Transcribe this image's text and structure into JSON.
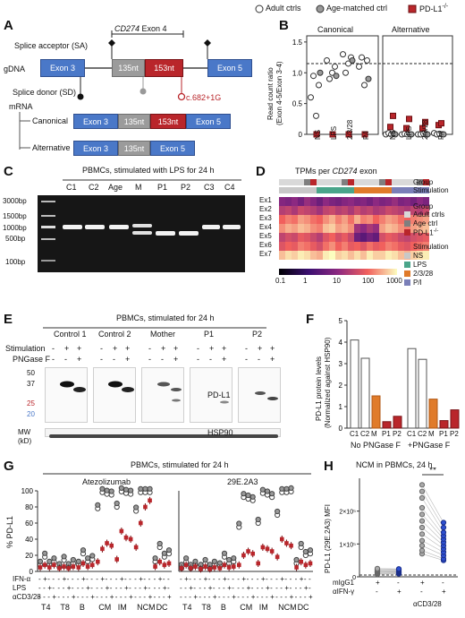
{
  "legend": {
    "adult": "Adult ctrls",
    "age": "Age-matched ctrl",
    "pd": "PD-L1",
    "pd_sup": "-/-"
  },
  "panelA": {
    "letter": "A",
    "gene_label": "CD274",
    "gene_exon": "Exon 4",
    "splice_acceptor": "Splice acceptor (SA)",
    "splice_donor": "Splice donor (SD)",
    "gdna": "gDNA",
    "mrna": "mRNA",
    "exon3": "Exon 3",
    "nt135": "135nt",
    "nt153": "153nt",
    "exon5": "Exon 5",
    "mutation": "c.682+1G",
    "canonical": "Canonical",
    "alternative": "Alternative"
  },
  "panelB": {
    "letter": "B",
    "col1": "Canonical",
    "col2": "Alternative",
    "ylabel": "Read count ratio",
    "ylabel2": "(Exon 4-5/Exon 3-4)",
    "yticks": [
      "0",
      "0.5",
      "1.0",
      "1.5"
    ],
    "xcats": [
      "NS",
      "LPS",
      "2/3/28",
      "P/I"
    ]
  },
  "panelC": {
    "letter": "C",
    "title": "PBMCs, stimulated with LPS for 24 h",
    "lanes": [
      "C1",
      "C2",
      "Age",
      "M",
      "P1",
      "P2",
      "C3",
      "C4"
    ],
    "ladder": [
      "3000bp",
      "1500bp",
      "1000bp",
      "500bp",
      "100bp"
    ]
  },
  "panelD": {
    "letter": "D",
    "title": "TPMs per",
    "title_gene": "CD274",
    "title_end": "exon",
    "row_group": "Group",
    "row_stim": "Stimulation",
    "exons": [
      "Ex1",
      "Ex2",
      "Ex3",
      "Ex4",
      "Ex5",
      "Ex6",
      "Ex7"
    ],
    "scale": [
      "0.1",
      "1",
      "10",
      "100",
      "1000"
    ],
    "legend_group_title": "Group",
    "legend_group": [
      "Adult ctrls",
      "Age ctrl",
      "PD-L1"
    ],
    "legend_stim_title": "Stimulation",
    "legend_stim": [
      "NS",
      "LPS",
      "2/3/28",
      "P/I"
    ],
    "colors": {
      "adult": "#d9d9d9",
      "age": "#7f7f7f",
      "pd": "#b9262b",
      "ns": "#c8c8c8",
      "lps": "#4aa58a",
      "s2328": "#e07b2a",
      "pi": "#7a7fb8"
    }
  },
  "panelE": {
    "letter": "E",
    "title": "PBMCs, stimulated for 24 h",
    "groups": [
      "Control 1",
      "Control 2",
      "Mother",
      "P1",
      "P2"
    ],
    "stim_label": "Stimulation",
    "png_label": "PNGase F",
    "signs_stim": [
      "-",
      "+",
      "+",
      "-",
      "+",
      "+",
      "-",
      "+",
      "+",
      "-",
      "+",
      "+",
      "-",
      "+",
      "+"
    ],
    "signs_png": [
      "-",
      "-",
      "+",
      "-",
      "-",
      "+",
      "-",
      "-",
      "+",
      "-",
      "-",
      "+",
      "-",
      "-",
      "+"
    ],
    "mw": [
      "50",
      "37",
      "25",
      "20"
    ],
    "mw_label": "MW",
    "kd": "(kD)",
    "pdl1": "PD-L1",
    "hsp90": "HSP90"
  },
  "panelF": {
    "letter": "F",
    "ylabel": "PD-L1 protein levels",
    "ylabel2": "(Normalized against HSP90)",
    "yticks": [
      "0",
      "1",
      "2",
      "3",
      "4",
      "5"
    ],
    "cats": [
      "C1",
      "C2",
      "M",
      "P1",
      "P2",
      "C1",
      "C2",
      "M",
      "P1",
      "P2"
    ],
    "groups": [
      "No PNGase F",
      "+PNGase F"
    ]
  },
  "panelG": {
    "letter": "G",
    "title": "PBMCs, stimulated for 24 h",
    "sub1": "Atezolizumab",
    "sub2": "29E.2A3",
    "ylabel": "% PD-L1",
    "yticks": [
      "0",
      "20",
      "40",
      "60",
      "80",
      "100"
    ],
    "row_labels": [
      "IFN-α",
      "LPS",
      "αCD3/28"
    ],
    "cells": [
      "T4",
      "T8",
      "B",
      "CM",
      "IM",
      "NCM",
      "DC"
    ]
  },
  "panelH": {
    "letter": "H",
    "title": "NCM in PBMCs, 24 h",
    "ylabel": "PD-L1 (29E.2A3) MFI",
    "yticks": [
      "0",
      "1×10⁵",
      "2×10⁵"
    ],
    "sig": "**",
    "row_labels": [
      "mIgG1",
      "αIFN-γ"
    ],
    "cd328": "αCD3/28"
  },
  "chart_data": [
    {
      "type": "scatter",
      "panel": "B",
      "categories": [
        "NS",
        "LPS",
        "2/3/28",
        "P/I"
      ],
      "series": [
        {
          "name": "Adult ctrls",
          "group": "Canonical",
          "values": [
            [
              0.6,
              0.95,
              0.3,
              0.8
            ],
            [
              1.2,
              0.9,
              1.0,
              1.1
            ],
            [
              1.3,
              1.0,
              1.15,
              1.25
            ],
            [
              1.1,
              1.25,
              0.8,
              1.2
            ]
          ]
        },
        {
          "name": "Age-matched ctrl",
          "group": "Canonical",
          "values": [
            1.0,
            0.95,
            1.2,
            0.9
          ]
        },
        {
          "name": "PD-L1",
          "group": "Canonical",
          "values": [
            0,
            0,
            0,
            0
          ]
        },
        {
          "name": "Adult ctrls",
          "group": "Alternative",
          "values": [
            [
              0,
              0.02,
              0,
              0.01
            ],
            [
              0,
              0.01,
              0,
              0
            ],
            [
              0,
              0,
              0.01,
              0
            ],
            [
              0.02,
              0,
              0.01,
              0
            ]
          ]
        },
        {
          "name": "Age-matched ctrl",
          "group": "Alternative",
          "values": [
            0,
            0,
            0,
            0
          ]
        },
        {
          "name": "PD-L1",
          "group": "Alternative",
          "values": [
            [
              0.12,
              0.3
            ],
            [
              0.1,
              0.25
            ],
            [
              0.1,
              0.2
            ],
            [
              0.15,
              0.18
            ]
          ]
        }
      ],
      "ylim": [
        0,
        1.6
      ]
    },
    {
      "type": "heatmap",
      "panel": "D",
      "rows": [
        "Ex1",
        "Ex2",
        "Ex3",
        "Ex4",
        "Ex5",
        "Ex6",
        "Ex7"
      ],
      "n_cols": 24,
      "log10_values": [
        [
          0.9,
          0.8,
          1.0,
          0.7,
          1.1,
          0.9,
          0.6,
          1.0,
          0.8,
          0.7,
          0.9,
          1.0,
          0.8,
          0.9,
          0.7,
          1.0,
          0.8,
          0.9,
          1.1,
          0.8,
          0.9,
          0.7,
          1.0,
          0.8
        ],
        [
          1.4,
          1.5,
          1.3,
          1.6,
          1.5,
          1.4,
          1.2,
          1.5,
          1.6,
          1.4,
          1.5,
          1.3,
          1.6,
          1.4,
          1.5,
          1.3,
          1.4,
          1.6,
          1.5,
          1.4,
          1.3,
          1.5,
          1.4,
          1.6
        ],
        [
          2.0,
          2.2,
          2.1,
          2.4,
          2.3,
          2.1,
          2.0,
          2.3,
          2.5,
          2.2,
          2.4,
          2.1,
          2.5,
          2.2,
          2.3,
          2.0,
          2.2,
          2.4,
          2.3,
          2.1,
          2.0,
          2.2,
          2.3,
          2.4
        ],
        [
          2.3,
          2.5,
          2.4,
          2.6,
          2.5,
          2.3,
          2.2,
          2.6,
          2.7,
          2.4,
          2.5,
          2.3,
          1.2,
          1.0,
          1.3,
          1.1,
          2.4,
          2.6,
          2.5,
          2.3,
          2.2,
          2.4,
          2.5,
          2.6
        ],
        [
          1.5,
          1.7,
          1.6,
          1.9,
          1.8,
          1.6,
          1.4,
          1.8,
          2.0,
          1.7,
          1.9,
          1.6,
          0.6,
          0.4,
          0.7,
          0.5,
          1.7,
          1.9,
          1.8,
          1.6,
          1.5,
          1.7,
          1.8,
          1.9
        ],
        [
          1.8,
          2.0,
          1.9,
          2.2,
          2.1,
          1.9,
          1.7,
          2.1,
          2.3,
          2.0,
          2.2,
          1.9,
          2.0,
          1.8,
          2.1,
          1.9,
          2.0,
          2.2,
          2.1,
          1.9,
          1.8,
          2.0,
          2.1,
          2.2
        ],
        [
          2.6,
          2.8,
          2.7,
          2.9,
          2.8,
          2.6,
          2.5,
          2.9,
          3.0,
          2.7,
          2.8,
          2.6,
          2.8,
          2.6,
          2.9,
          2.7,
          2.7,
          2.9,
          2.8,
          2.6,
          2.5,
          2.7,
          2.8,
          2.9
        ]
      ],
      "scale": [
        0.1,
        1000
      ]
    },
    {
      "type": "bar",
      "panel": "F",
      "categories": [
        "C1",
        "C2",
        "M",
        "P1",
        "P2",
        "C1",
        "C2",
        "M",
        "P1",
        "P2"
      ],
      "values": [
        4.1,
        3.25,
        1.5,
        0.3,
        0.55,
        3.7,
        3.2,
        1.35,
        0.35,
        0.85
      ],
      "ylim": [
        0,
        5
      ]
    },
    {
      "type": "scatter",
      "panel": "G",
      "cells": [
        "T4",
        "T8",
        "B",
        "CM",
        "IM",
        "NCM",
        "DC"
      ],
      "conditions": [
        "-",
        "IFN-α",
        "LPS",
        "αCD3/28"
      ],
      "series": [
        {
          "name": "Adult ctrls",
          "antibody": "Atezolizumab",
          "values": [
            [
              8,
              18,
              8,
              12
            ],
            [
              5,
              14,
              5,
              10
            ],
            [
              8,
              22,
              12,
              15
            ],
            [
              78,
              98,
              96,
              95
            ],
            [
              80,
              99,
              97,
              96
            ],
            [
              75,
              98,
              98,
              98
            ],
            [
              12,
              30,
              18,
              22
            ]
          ]
        },
        {
          "name": "PD-L1",
          "antibody": "Atezolizumab",
          "values": [
            [
              5,
              8,
              5,
              8
            ],
            [
              4,
              6,
              4,
              6
            ],
            [
              5,
              10,
              6,
              8
            ],
            [
              12,
              28,
              35,
              32
            ],
            [
              15,
              50,
              42,
              40
            ],
            [
              30,
              60,
              80,
              88
            ],
            [
              6,
              12,
              8,
              10
            ]
          ]
        },
        {
          "name": "Adult ctrls",
          "antibody": "29E.2A3",
          "values": [
            [
              4,
              12,
              4,
              8
            ],
            [
              4,
              10,
              4,
              8
            ],
            [
              6,
              18,
              10,
              12
            ],
            [
              55,
              92,
              90,
              88
            ],
            [
              60,
              97,
              95,
              92
            ],
            [
              70,
              98,
              98,
              99
            ],
            [
              10,
              30,
              20,
              22
            ]
          ]
        },
        {
          "name": "PD-L1",
          "antibody": "29E.2A3",
          "values": [
            [
              4,
              8,
              4,
              6
            ],
            [
              3,
              6,
              3,
              5
            ],
            [
              4,
              8,
              5,
              6
            ],
            [
              8,
              20,
              25,
              22
            ],
            [
              10,
              30,
              28,
              25
            ],
            [
              18,
              40,
              35,
              32
            ],
            [
              5,
              12,
              8,
              10
            ]
          ]
        }
      ],
      "ylim": [
        0,
        100
      ]
    },
    {
      "type": "scatter",
      "panel": "H",
      "categories": [
        "mIgG1",
        "αIFN-γ",
        "mIgG1 + αCD3/28",
        "αIFN-γ + αCD3/28"
      ],
      "values": [
        [
          8000,
          10000,
          12000,
          14000,
          15000,
          16000,
          18000,
          20000,
          22000,
          25000
        ],
        [
          9000,
          11000,
          13000,
          14500,
          16000,
          17000,
          19000,
          21000,
          23000,
          24000
        ],
        [
          70000,
          80000,
          95000,
          110000,
          130000,
          150000,
          170000,
          190000,
          210000,
          240000,
          260000,
          280000
        ],
        [
          50000,
          55000,
          65000,
          75000,
          85000,
          95000,
          105000,
          115000,
          125000,
          135000,
          150000,
          165000
        ]
      ],
      "ylim": [
        0,
        300000
      ]
    }
  ]
}
